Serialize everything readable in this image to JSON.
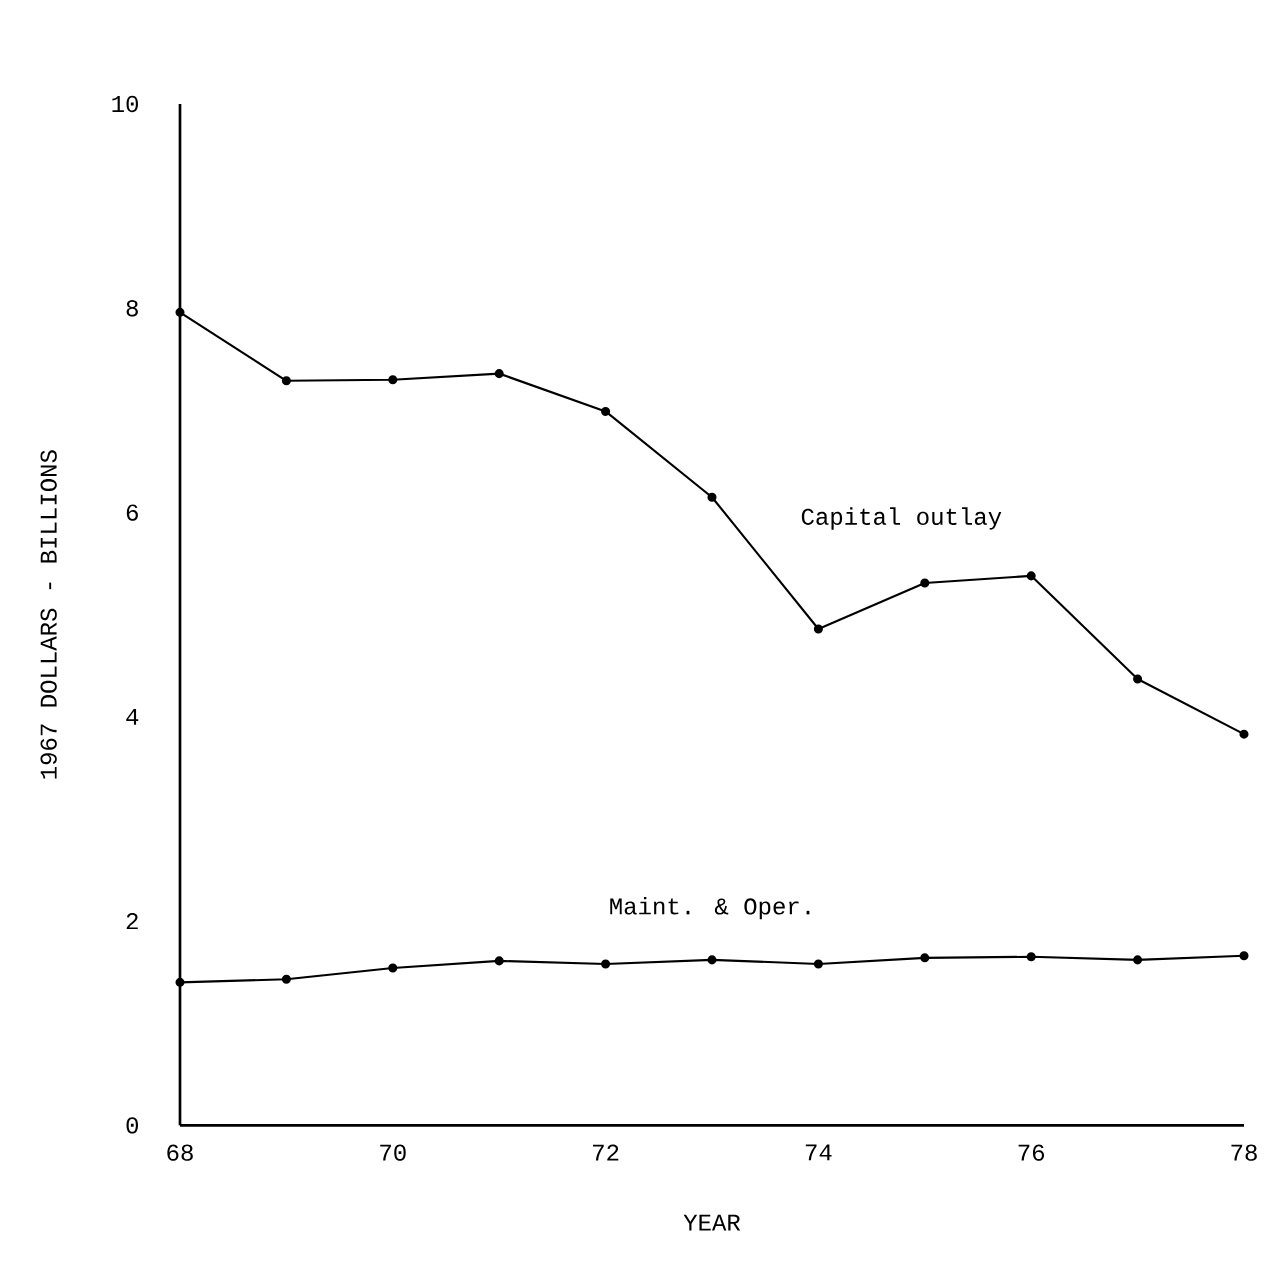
{
  "chart_data": {
    "type": "line",
    "xlabel": "YEAR",
    "ylabel": "1967 DOLLARS - BILLIONS",
    "x": [
      68,
      69,
      70,
      71,
      72,
      73,
      74,
      75,
      76,
      77,
      78
    ],
    "series": [
      {
        "name": "Capital outlay",
        "color": "#000000",
        "values": [
          7.96,
          7.29,
          7.3,
          7.36,
          6.99,
          6.15,
          4.86,
          5.31,
          5.38,
          4.37,
          3.83
        ]
      },
      {
        "name": "Maint. & Oper.",
        "color": "#000000",
        "values": [
          1.4,
          1.43,
          1.54,
          1.61,
          1.58,
          1.62,
          1.58,
          1.64,
          1.65,
          1.62,
          1.66
        ]
      }
    ],
    "xlim": [
      68,
      78
    ],
    "ylim": [
      0,
      10
    ],
    "xticks": [
      68,
      70,
      72,
      74,
      76,
      78
    ],
    "yticks": [
      0,
      2,
      4,
      6,
      8,
      10
    ],
    "grid": false,
    "legend": false,
    "marker": "circle",
    "line_style": "solid"
  }
}
